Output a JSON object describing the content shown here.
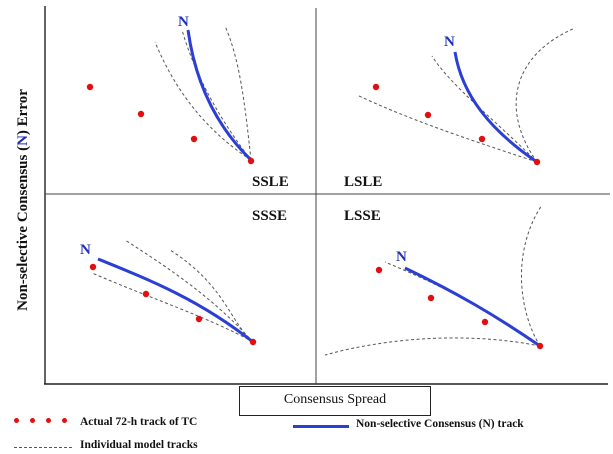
{
  "y_axis_title": {
    "before": "Non-selective Consensus (",
    "symbol": "N",
    "after": ") Error"
  },
  "x_axis_title": "Consensus Spread",
  "quadrants": [
    {
      "id": "SSLE",
      "label": "SSLE"
    },
    {
      "id": "LSLE",
      "label": "LSLE"
    },
    {
      "id": "SSSE",
      "label": "SSSE"
    },
    {
      "id": "LSSE",
      "label": "LSSE"
    }
  ],
  "consensus_symbol": "N",
  "legend": {
    "actual_track": "Actual 72-h track of TC",
    "consensus_track": "Non-selective Consensus (N) track",
    "model_tracks": "Individual model tracks"
  },
  "colors": {
    "actual_track": "#e01010",
    "consensus_track": "#2b3fd4",
    "model_tracks": "#555555",
    "axes": "#222222"
  }
}
